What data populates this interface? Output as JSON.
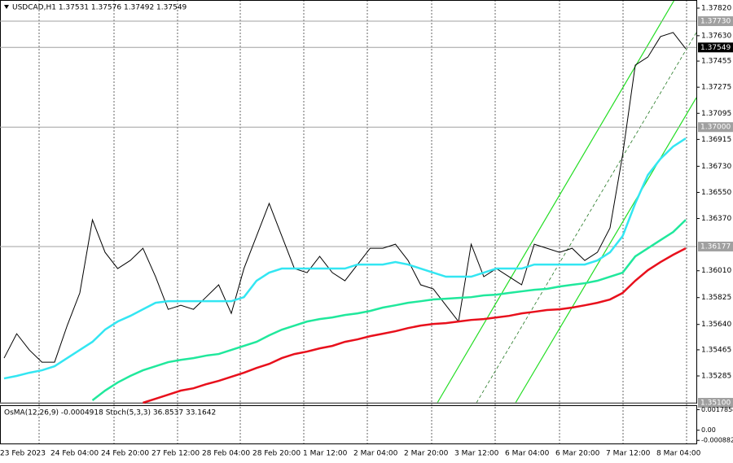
{
  "chart_data": {
    "type": "line",
    "title": "USDCAD,H1  1.37531 1.37576 1.37492 1.37549",
    "categories": [
      "23 Feb 2023",
      null,
      null,
      null,
      "24 Feb 04:00",
      null,
      null,
      null,
      "24 Feb 20:00",
      null,
      null,
      null,
      "27 Feb 12:00",
      null,
      null,
      null,
      "28 Feb 04:00",
      null,
      null,
      null,
      "28 Feb 20:00",
      null,
      null,
      null,
      "1 Mar 12:00",
      null,
      null,
      null,
      "2 Mar 04:00",
      null,
      null,
      null,
      "2 Mar 20:00",
      null,
      null,
      null,
      "3 Mar 12:00",
      null,
      null,
      null,
      "6 Mar 04:00",
      null,
      null,
      null,
      "6 Mar 20:00",
      null,
      null,
      null,
      "7 Mar 12:00",
      null,
      null,
      null,
      "8 Mar 04:00",
      null,
      null
    ],
    "series": [
      {
        "color": "#000000",
        "values": [
          1.35408,
          1.35576,
          1.35464,
          1.3538,
          1.3538,
          1.35632,
          1.35857,
          1.36361,
          1.36137,
          1.36025,
          1.36081,
          1.36165,
          1.35969,
          1.35744,
          1.35772,
          1.35744,
          1.35828,
          1.35913,
          1.35716,
          1.36025,
          1.36249,
          1.36474,
          1.36249,
          1.36025,
          1.35997,
          1.36109,
          1.35997,
          1.35941,
          1.36053,
          1.36165,
          1.36165,
          1.36193,
          1.36081,
          1.35913,
          1.35885,
          1.35772,
          1.3566,
          1.36193,
          1.35969,
          1.36025,
          1.35969,
          1.35913,
          1.36193,
          1.36165,
          1.36137,
          1.36165,
          1.36081,
          1.36137,
          1.36305,
          1.3681,
          1.37427,
          1.37483,
          1.37624,
          1.37652,
          1.3754
        ]
      },
      {
        "color": "#33e6f2",
        "values": [
          1.35268,
          1.35285,
          1.35307,
          1.35324,
          1.35352,
          1.35408,
          1.35464,
          1.3552,
          1.35604,
          1.3566,
          1.35699,
          1.35744,
          1.35789,
          1.358,
          1.358,
          1.358,
          1.358,
          1.358,
          1.358,
          1.35828,
          1.35941,
          1.35997,
          1.36025,
          1.36025,
          1.36025,
          1.36025,
          1.36025,
          1.36025,
          1.36053,
          1.36053,
          1.36053,
          1.3607,
          1.36053,
          1.36025,
          1.35997,
          1.35969,
          1.35969,
          1.35969,
          1.35997,
          1.36025,
          1.36025,
          1.36025,
          1.36053,
          1.36053,
          1.36053,
          1.36053,
          1.36053,
          1.36081,
          1.36137,
          1.36249,
          1.36474,
          1.3667,
          1.36782,
          1.36866,
          1.36922
        ]
      },
      {
        "color": "#20e89c",
        "values": [
          null,
          null,
          null,
          null,
          null,
          null,
          null,
          1.35117,
          1.35184,
          1.3524,
          1.35285,
          1.35324,
          1.35352,
          1.3538,
          1.35396,
          1.35408,
          1.35425,
          1.35436,
          1.35464,
          1.35492,
          1.3552,
          1.35565,
          1.35604,
          1.35632,
          1.3566,
          1.35677,
          1.35688,
          1.35705,
          1.35716,
          1.35733,
          1.35756,
          1.35772,
          1.35789,
          1.358,
          1.35812,
          1.35817,
          1.35823,
          1.35828,
          1.3584,
          1.35845,
          1.35857,
          1.35868,
          1.35879,
          1.35885,
          1.35901,
          1.35913,
          1.35924,
          1.35941,
          1.35969,
          1.35997,
          1.36109,
          1.36165,
          1.36221,
          1.36277,
          1.36361
        ]
      },
      {
        "color": "#e8101c",
        "values": [
          null,
          null,
          null,
          null,
          null,
          null,
          null,
          null,
          null,
          null,
          null,
          1.351,
          1.35128,
          1.35156,
          1.35184,
          1.352,
          1.35228,
          1.35251,
          1.35279,
          1.35307,
          1.3534,
          1.35368,
          1.35408,
          1.35436,
          1.35453,
          1.35475,
          1.35492,
          1.3552,
          1.35537,
          1.35559,
          1.35576,
          1.35593,
          1.35615,
          1.35632,
          1.35643,
          1.35649,
          1.3566,
          1.35671,
          1.35677,
          1.35688,
          1.35699,
          1.35716,
          1.35727,
          1.35739,
          1.35744,
          1.35756,
          1.35772,
          1.35789,
          1.35812,
          1.35857,
          1.35941,
          1.36014,
          1.3607,
          1.3612,
          1.36165
        ]
      }
    ],
    "ylim": [
      1.351,
      1.37876
    ],
    "yticks": [
      {
        "value": 1.3782,
        "label": "1.37820"
      },
      {
        "value": 1.3763,
        "label": "1.37630"
      },
      {
        "value": 1.37455,
        "label": "1.37455"
      },
      {
        "value": 1.37275,
        "label": "1.37275"
      },
      {
        "value": 1.37095,
        "label": "1.37095"
      },
      {
        "value": 1.36915,
        "label": "1.36915"
      },
      {
        "value": 1.3673,
        "label": "1.36730"
      },
      {
        "value": 1.3655,
        "label": "1.36550"
      },
      {
        "value": 1.3637,
        "label": "1.36370"
      },
      {
        "value": 1.3601,
        "label": "1.36010"
      },
      {
        "value": 1.35825,
        "label": "1.35825"
      },
      {
        "value": 1.3564,
        "label": "1.35640"
      },
      {
        "value": 1.35465,
        "label": "1.35465"
      },
      {
        "value": 1.35285,
        "label": "1.35285"
      }
    ],
    "levels": [
      {
        "value": 1.3773,
        "label": "1.37730"
      },
      {
        "value": 1.37,
        "label": "1.37000"
      },
      {
        "value": 1.36177,
        "label": "1.36177"
      },
      {
        "value": 1.351,
        "label": "1.35100"
      }
    ],
    "last_price": {
      "value": 1.37549,
      "label": "1.37549"
    },
    "indicator": {
      "title": "OsMA(12,26,9) -0.0004918  Stoch(5,3,3) 36.8537 33.1642",
      "ylim": [
        -0.00115,
        0.0021
      ],
      "yticks": [
        {
          "value": 0.0017854,
          "label": "0.0017854"
        },
        {
          "value": 0,
          "label": "0.00"
        },
        {
          "value": -0.000882,
          "label": "-0.000882"
        }
      ]
    }
  }
}
